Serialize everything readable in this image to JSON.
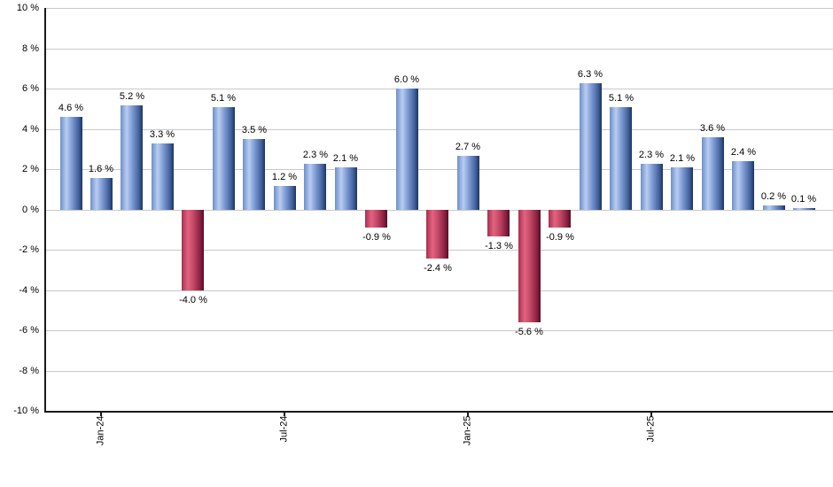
{
  "chart_data": {
    "type": "bar",
    "title": "",
    "xlabel": "",
    "ylabel": "",
    "ylim": [
      -10,
      10
    ],
    "grid": true,
    "legend": false,
    "y_ticks": [
      {
        "value": 10,
        "label": "10 %"
      },
      {
        "value": 8,
        "label": "8 %"
      },
      {
        "value": 6,
        "label": "6 %"
      },
      {
        "value": 4,
        "label": "4 %"
      },
      {
        "value": 2,
        "label": "2 %"
      },
      {
        "value": 0,
        "label": "0 %"
      },
      {
        "value": -2,
        "label": "-2 %"
      },
      {
        "value": -4,
        "label": "-4 %"
      },
      {
        "value": -6,
        "label": "-6 %"
      },
      {
        "value": -8,
        "label": "-8 %"
      },
      {
        "value": -10,
        "label": "-10 %"
      }
    ],
    "x_ticks": [
      {
        "index": 1,
        "label": "Jan-24"
      },
      {
        "index": 7,
        "label": "Jul-24"
      },
      {
        "index": 13,
        "label": "Jan-25"
      },
      {
        "index": 19,
        "label": "Jul-25"
      }
    ],
    "bars": [
      {
        "value": 4.6,
        "label": "4.6 %"
      },
      {
        "value": 1.6,
        "label": "1.6 %"
      },
      {
        "value": 5.2,
        "label": "5.2 %"
      },
      {
        "value": 3.3,
        "label": "3.3 %"
      },
      {
        "value": -4.0,
        "label": "-4.0 %"
      },
      {
        "value": 5.1,
        "label": "5.1 %"
      },
      {
        "value": 3.5,
        "label": "3.5 %"
      },
      {
        "value": 1.2,
        "label": "1.2 %"
      },
      {
        "value": 2.3,
        "label": "2.3 %"
      },
      {
        "value": 2.1,
        "label": "2.1 %"
      },
      {
        "value": -0.9,
        "label": "-0.9 %"
      },
      {
        "value": 6.0,
        "label": "6.0 %"
      },
      {
        "value": -2.4,
        "label": "-2.4 %"
      },
      {
        "value": 2.7,
        "label": "2.7 %"
      },
      {
        "value": -1.3,
        "label": "-1.3 %"
      },
      {
        "value": -5.6,
        "label": "-5.6 %"
      },
      {
        "value": -0.9,
        "label": "-0.9 %"
      },
      {
        "value": 6.3,
        "label": "6.3 %"
      },
      {
        "value": 5.1,
        "label": "5.1 %"
      },
      {
        "value": 2.3,
        "label": "2.3 %"
      },
      {
        "value": 2.1,
        "label": "2.1 %"
      },
      {
        "value": 3.6,
        "label": "3.6 %"
      },
      {
        "value": 2.4,
        "label": "2.4 %"
      },
      {
        "value": 0.2,
        "label": "0.2 %"
      },
      {
        "value": 0.1,
        "label": "0.1 %"
      }
    ],
    "colors": {
      "positive_gradient": [
        "#6d8fca",
        "#b9cdf0",
        "#7f9cd4",
        "#44639f",
        "#1d3560"
      ],
      "negative_gradient": [
        "#a63050",
        "#e3637f",
        "#c44a68",
        "#8d2242",
        "#550e26"
      ],
      "grid": "#c9c9c9",
      "axis": "#1a1a1a",
      "text": "#000000",
      "background": "#ffffff"
    }
  }
}
